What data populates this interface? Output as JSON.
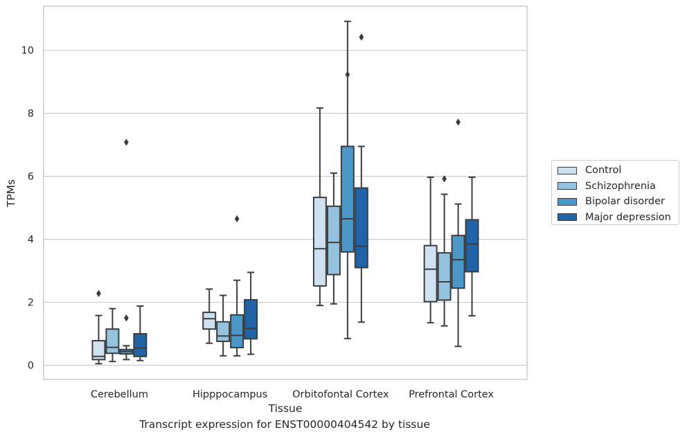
{
  "chart_data": {
    "type": "box",
    "title": "",
    "caption": "Transcript expression for ENST00000404542 by tissue",
    "xlabel": "Tissue",
    "ylabel": "TPMs",
    "ylim": [
      -0.45,
      11.4
    ],
    "yticks": [
      0,
      2,
      4,
      6,
      8,
      10
    ],
    "grid": "horizontal",
    "legend_position": "right",
    "categories": [
      "Cerebellum",
      "Hipppocampus",
      "Orbitofontal Cortex",
      "Prefrontal Cortex"
    ],
    "series": [
      {
        "name": "Control",
        "color": "#cfe0f1",
        "boxes": [
          {
            "whisker_low": 0.05,
            "q1": 0.18,
            "median": 0.28,
            "q3": 0.78,
            "whisker_high": 1.58,
            "outliers": [
              2.28
            ]
          },
          {
            "whisker_low": 0.7,
            "q1": 1.15,
            "median": 1.48,
            "q3": 1.68,
            "whisker_high": 2.42,
            "outliers": []
          },
          {
            "whisker_low": 1.9,
            "q1": 2.52,
            "median": 3.7,
            "q3": 5.33,
            "whisker_high": 8.17,
            "outliers": []
          },
          {
            "whisker_low": 1.35,
            "q1": 2.02,
            "median": 3.05,
            "q3": 3.8,
            "whisker_high": 5.97,
            "outliers": []
          }
        ]
      },
      {
        "name": "Schizophrenia",
        "color": "#93c3df",
        "boxes": [
          {
            "whisker_low": 0.12,
            "q1": 0.38,
            "median": 0.57,
            "q3": 1.15,
            "whisker_high": 1.8,
            "outliers": []
          },
          {
            "whisker_low": 0.3,
            "q1": 0.76,
            "median": 0.93,
            "q3": 1.38,
            "whisker_high": 2.22,
            "outliers": []
          },
          {
            "whisker_low": 1.95,
            "q1": 2.88,
            "median": 3.9,
            "q3": 5.05,
            "whisker_high": 6.1,
            "outliers": []
          },
          {
            "whisker_low": 1.25,
            "q1": 2.07,
            "median": 2.65,
            "q3": 3.57,
            "whisker_high": 5.43,
            "outliers": [
              5.92
            ]
          }
        ]
      },
      {
        "name": "Bipolar disorder",
        "color": "#4a98c9",
        "boxes": [
          {
            "whisker_low": 0.18,
            "q1": 0.36,
            "median": 0.44,
            "q3": 0.5,
            "whisker_high": 0.62,
            "outliers": [
              1.5,
              7.08
            ]
          },
          {
            "whisker_low": 0.3,
            "q1": 0.56,
            "median": 0.95,
            "q3": 1.6,
            "whisker_high": 2.7,
            "outliers": [
              4.65
            ]
          },
          {
            "whisker_low": 0.85,
            "q1": 3.6,
            "median": 4.65,
            "q3": 6.95,
            "whisker_high": 10.92,
            "outliers": [
              9.23
            ]
          },
          {
            "whisker_low": 0.6,
            "q1": 2.45,
            "median": 3.35,
            "q3": 4.12,
            "whisker_high": 5.12,
            "outliers": [
              7.72
            ]
          }
        ]
      },
      {
        "name": "Major depression",
        "color": "#1f63a8",
        "boxes": [
          {
            "whisker_low": 0.15,
            "q1": 0.28,
            "median": 0.55,
            "q3": 1.0,
            "whisker_high": 1.88,
            "outliers": []
          },
          {
            "whisker_low": 0.35,
            "q1": 0.84,
            "median": 1.17,
            "q3": 2.08,
            "whisker_high": 2.95,
            "outliers": []
          },
          {
            "whisker_low": 1.37,
            "q1": 3.1,
            "median": 3.78,
            "q3": 5.63,
            "whisker_high": 6.95,
            "outliers": [
              10.42
            ]
          },
          {
            "whisker_low": 1.57,
            "q1": 2.97,
            "median": 3.85,
            "q3": 4.62,
            "whisker_high": 5.97,
            "outliers": []
          }
        ]
      }
    ]
  }
}
